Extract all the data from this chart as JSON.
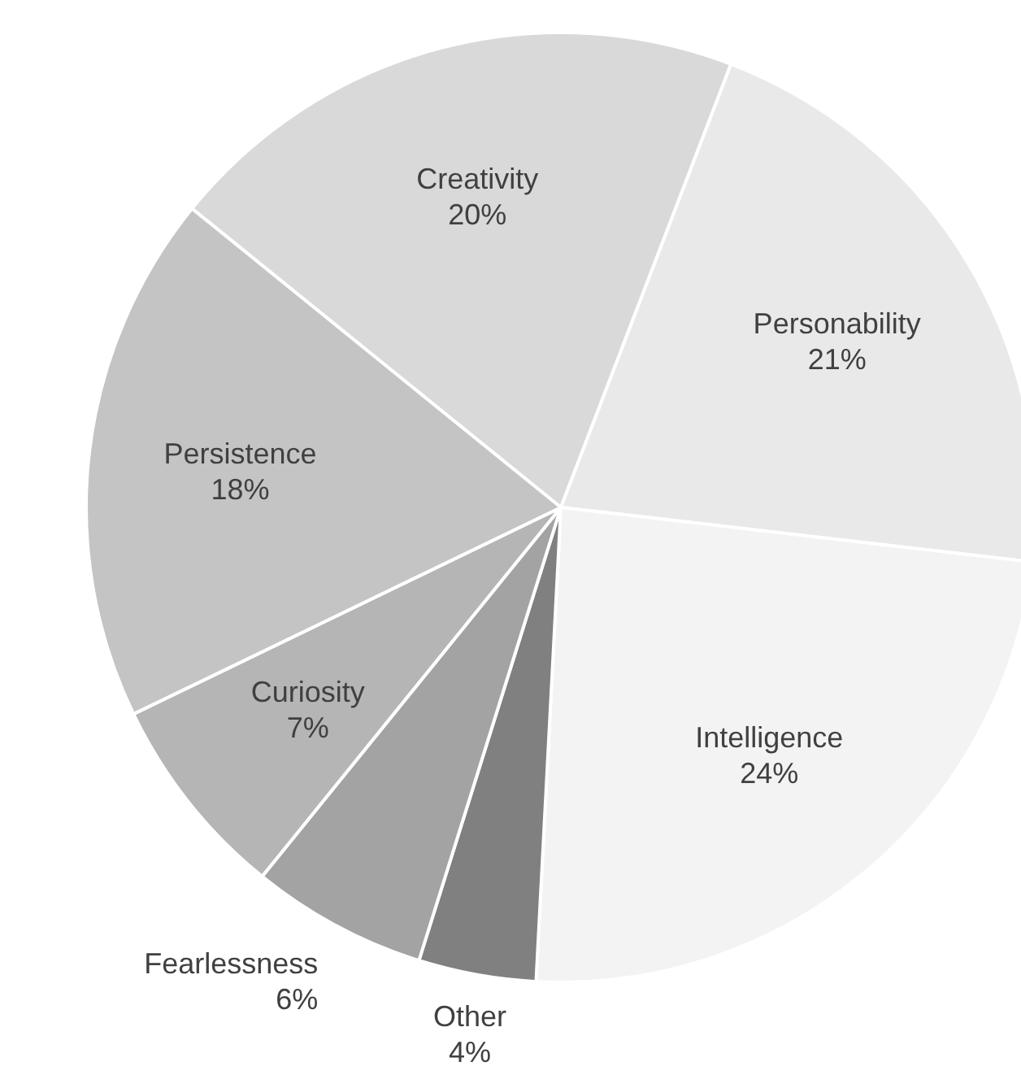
{
  "chart_data": {
    "type": "pie",
    "categories": [
      "Creativity",
      "Personability",
      "Intelligence",
      "Other",
      "Fearlessness",
      "Curiosity",
      "Persistence"
    ],
    "values": [
      20,
      21,
      24,
      4,
      6,
      7,
      18
    ],
    "colors": [
      "#d9d9d9",
      "#e9e9e9",
      "#f3f3f3",
      "#808080",
      "#a3a3a3",
      "#b5b5b5",
      "#c4c4c4"
    ],
    "value_labels": [
      "20%",
      "21%",
      "24%",
      "4%",
      "6%",
      "7%",
      "18%"
    ]
  }
}
